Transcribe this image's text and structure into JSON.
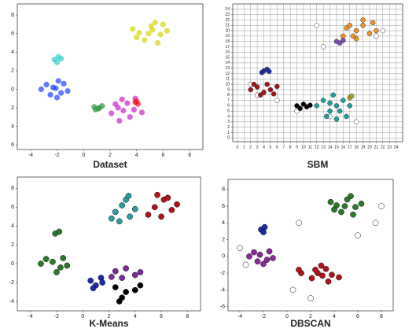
{
  "chart_data": [
    {
      "type": "scatter",
      "title": "Dataset",
      "xlim": [
        -5,
        9
      ],
      "ylim": [
        -6.5,
        9.2
      ],
      "xticks": [
        -4,
        -2,
        0,
        2,
        4,
        6,
        8
      ],
      "yticks": [
        {
          "value": -6,
          "label": "6"
        },
        {
          "value": -4,
          "label": "4"
        },
        {
          "value": -2,
          "label": "2"
        },
        0,
        2,
        4,
        6,
        8
      ],
      "grid": false,
      "series": [
        {
          "color": "#d4d40a",
          "x": [
            4.2,
            5.1,
            5.8,
            4.6,
            3.7,
            5.4,
            6.3,
            4.9,
            5.6,
            4.0,
            6.0,
            5.2
          ],
          "y": [
            6.1,
            6.8,
            5.9,
            5.3,
            6.5,
            7.2,
            6.3,
            6.0,
            5.0,
            5.6,
            7.0,
            6.4
          ]
        },
        {
          "color": "#1f3fff",
          "x": [
            -2.3,
            -1.7,
            -2.8,
            -1.5,
            -2.0,
            -3.2,
            -1.2,
            -2.5,
            -1.9,
            -2.1
          ],
          "y": [
            0.2,
            -0.4,
            0.5,
            0.6,
            -0.9,
            0.0,
            -0.2,
            -0.6,
            0.9,
            0.1
          ]
        },
        {
          "color": "#33cccc",
          "x": [
            -2.2,
            -1.9,
            -2.0,
            -1.7
          ],
          "y": [
            3.2,
            3.5,
            2.9,
            3.3
          ]
        },
        {
          "color": "#cc22cc",
          "x": [
            2.6,
            3.3,
            2.1,
            3.8,
            2.9,
            3.5,
            2.4,
            4.4,
            3.0,
            2.7,
            3.9
          ],
          "y": [
            -2.0,
            -1.5,
            -2.6,
            -2.2,
            -1.1,
            -3.0,
            -1.6,
            -2.5,
            -2.3,
            -3.4,
            -1.0
          ]
        },
        {
          "color": "#2a9a3a",
          "x": [
            0.8,
            1.1,
            1.4,
            0.9,
            1.2
          ],
          "y": [
            -1.9,
            -2.1,
            -1.8,
            -2.2,
            -2.0
          ]
        },
        {
          "color": "#ee1122",
          "x": [
            3.9,
            4.1,
            4.0
          ],
          "y": [
            -1.4,
            -1.6,
            -1.3
          ]
        }
      ]
    },
    {
      "type": "scatter",
      "title": "SBM",
      "xlim": [
        -0.7,
        25
      ],
      "ylim": [
        -0.7,
        25
      ],
      "xticks": [
        0,
        1,
        2,
        3,
        4,
        5,
        6,
        7,
        8,
        9,
        10,
        11,
        12,
        13,
        14,
        15,
        16,
        17,
        18,
        19,
        20,
        21,
        22,
        23,
        24
      ],
      "yticks": [
        0,
        1,
        2,
        3,
        4,
        5,
        6,
        7,
        8,
        9,
        10,
        11,
        12,
        13,
        14,
        15,
        16,
        17,
        18,
        19,
        20,
        21,
        22,
        23,
        24
      ],
      "grid": true,
      "edgecolor": "#333333",
      "series": [
        {
          "color": "#ffffff",
          "x": [
            12,
            21,
            14,
            2,
            6,
            9,
            18,
            13,
            22,
            3
          ],
          "y": [
            21,
            19,
            4,
            10,
            7,
            5,
            3,
            17,
            20,
            8
          ]
        },
        {
          "color": "#f0902a",
          "x": [
            16,
            18,
            19,
            20,
            17,
            21,
            18,
            19,
            16.5,
            20.5,
            17.5
          ],
          "y": [
            19,
            20,
            21,
            19.5,
            21,
            20,
            18.5,
            22,
            20.5,
            21.5,
            19
          ]
        },
        {
          "color": "#7a4fb0",
          "x": [
            15,
            15.5,
            16
          ],
          "y": [
            18,
            17.7,
            18.2
          ]
        },
        {
          "color": "#1d2ca8",
          "x": [
            4,
            4.5,
            3.7,
            4.8
          ],
          "y": [
            12.5,
            12.8,
            12.2,
            12.4
          ]
        },
        {
          "color": "#a0141a",
          "x": [
            2,
            3,
            4,
            5,
            6,
            3.5,
            4.5,
            2.5,
            5.5
          ],
          "y": [
            9,
            9.5,
            8.5,
            9,
            9.6,
            8,
            10,
            10,
            8.2
          ]
        },
        {
          "color": "#000000",
          "x": [
            9,
            10,
            10.5,
            9.5,
            11
          ],
          "y": [
            6,
            6.3,
            5.8,
            5.5,
            6.1
          ]
        },
        {
          "color": "#1f9ea0",
          "x": [
            12,
            13,
            14,
            15,
            16,
            17,
            13.5,
            14.5,
            15.5,
            16.5,
            14,
            15
          ],
          "y": [
            6,
            7,
            5,
            6,
            7,
            6,
            4,
            8,
            5,
            4,
            6.5,
            3.5
          ]
        },
        {
          "color": "#b5a020",
          "x": [
            17,
            17.3
          ],
          "y": [
            7.5,
            7.8
          ]
        }
      ]
    },
    {
      "type": "scatter",
      "title": "K-Means",
      "xlim": [
        -5,
        9
      ],
      "ylim": [
        -5,
        9.2
      ],
      "xticks": [
        -4,
        -2,
        0,
        2,
        4,
        6,
        8
      ],
      "yticks": [
        -4,
        -2,
        0,
        2,
        4,
        6,
        8
      ],
      "grid": false,
      "edgecolor": "#111111",
      "series": [
        {
          "color": "#2a9ea0",
          "x": [
            2.5,
            3.0,
            3.6,
            2.2,
            3.3,
            4.0,
            2.8,
            3.5
          ],
          "y": [
            5.5,
            6.2,
            5.0,
            4.8,
            6.8,
            5.8,
            4.5,
            7.2
          ]
        },
        {
          "color": "#b0141a",
          "x": [
            5.5,
            6.2,
            6.8,
            5.0,
            6.0,
            7.2,
            5.7,
            6.5
          ],
          "y": [
            6.0,
            6.8,
            5.7,
            5.2,
            5.0,
            6.3,
            7.3,
            7.0
          ]
        },
        {
          "color": "#2a7a2a",
          "x": [
            -2.3,
            -1.7,
            -2.8,
            -1.5,
            -2.0,
            -3.2,
            -1.2,
            -2.1,
            -1.8
          ],
          "y": [
            0.2,
            -0.4,
            0.5,
            0.6,
            -0.9,
            0.0,
            -0.2,
            3.2,
            3.4
          ]
        },
        {
          "color": "#1d2ca8",
          "x": [
            0.6,
            1.0,
            1.4,
            0.8,
            1.5
          ],
          "y": [
            -1.8,
            -2.3,
            -1.5,
            -2.6,
            -2.0
          ]
        },
        {
          "color": "#7a2a9a",
          "x": [
            2.5,
            3.3,
            4.0,
            3.0,
            4.4,
            2.2
          ],
          "y": [
            -0.8,
            -0.5,
            -1.2,
            -1.5,
            -0.9,
            -1.4
          ]
        },
        {
          "color": "#000000",
          "x": [
            2.5,
            3.3,
            4.0,
            3.0,
            4.4,
            2.8
          ],
          "y": [
            -2.5,
            -3.0,
            -2.8,
            -3.6,
            -2.3,
            -4.0
          ]
        }
      ]
    },
    {
      "type": "scatter",
      "title": "DBSCAN",
      "xlim": [
        -5,
        9
      ],
      "ylim": [
        -6.5,
        9.2
      ],
      "xticks": [
        -4,
        -2,
        0,
        2,
        4,
        6,
        8
      ],
      "yticks": [
        -6,
        -4,
        -2,
        0,
        2,
        4,
        6,
        8
      ],
      "grid": false,
      "edgecolor": "#111111",
      "series": [
        {
          "color": "#ffffff",
          "x": [
            -4,
            8,
            2,
            7.5,
            -3.5,
            6,
            1,
            0.5
          ],
          "y": [
            1,
            6,
            -5,
            4,
            -1,
            2.5,
            4,
            -4
          ]
        },
        {
          "color": "#2a7a2a",
          "x": [
            4.2,
            5.1,
            5.8,
            4.6,
            3.7,
            5.4,
            6.3,
            4.9,
            5.6,
            4.0
          ],
          "y": [
            6.1,
            6.8,
            5.9,
            5.3,
            6.5,
            7.2,
            6.3,
            6.0,
            5.0,
            5.6
          ]
        },
        {
          "color": "#8a2a9a",
          "x": [
            -2.3,
            -1.7,
            -2.8,
            -1.5,
            -2.0,
            -3.2,
            -1.2,
            -2.5
          ],
          "y": [
            0.2,
            -0.4,
            0.5,
            0.6,
            -0.9,
            0.0,
            -0.2,
            -0.6
          ]
        },
        {
          "color": "#1d2ca8",
          "x": [
            -2.2,
            -1.9,
            -2.0
          ],
          "y": [
            3.2,
            3.5,
            2.9
          ]
        },
        {
          "color": "#b0141a",
          "x": [
            2.6,
            3.3,
            2.1,
            3.8,
            2.9,
            3.5,
            2.4,
            4.4,
            3.0,
            1.2,
            1.0
          ],
          "y": [
            -2.0,
            -1.5,
            -2.6,
            -2.2,
            -1.1,
            -3.0,
            -1.6,
            -2.5,
            -2.3,
            -2.0,
            -1.6
          ]
        }
      ]
    }
  ]
}
